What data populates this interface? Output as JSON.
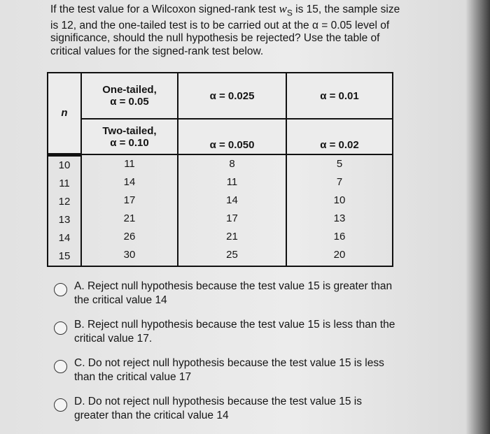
{
  "question": {
    "text_before": "If the test value for a Wilcoxon signed-rank test ",
    "var": "w",
    "var_sub": "S",
    "text_after": " is 15, the sample size is 12, and the one-tailed test is to be carried out at the α = 0.05 level of significance, should the null hypothesis be rejected? Use the table of critical values for the signed-rank test below."
  },
  "table": {
    "n_header": "n",
    "one_tailed": [
      "One-tailed,",
      "α = 0.05",
      "α = 0.025",
      "α = 0.01"
    ],
    "two_tailed": [
      "Two-tailed,",
      "α = 0.10",
      "α = 0.050",
      "α = 0.02"
    ],
    "n_values": "10\n11\n12\n13\n14\n15",
    "col1": "11\n14\n17\n21\n26\n30",
    "col2": "8\n11\n14\n17\n21\n25",
    "col3": "5\n7\n10\n13\n16\n20"
  },
  "options": [
    {
      "label": "A. Reject null hypothesis because the test value 15 is greater than the critical value 14"
    },
    {
      "label": "B. Reject null hypothesis because the test value 15 is less than the critical value 17."
    },
    {
      "label": "C. Do not reject null hypothesis because the test value 15 is less than the critical value 17"
    },
    {
      "label": "D. Do not reject null hypothesis because the test value 15 is greater than the critical value 14"
    }
  ]
}
